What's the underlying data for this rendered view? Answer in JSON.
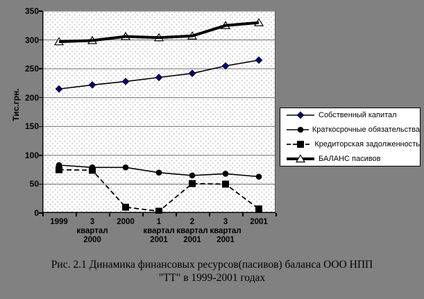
{
  "figure": {
    "background": "#818181",
    "caption": {
      "line1": "Рис. 2.1 Динамика финансовых ресурсов(пасивов) баланса ООО НПП",
      "line2": "\"ТТ\" в 1999-2001 годах"
    }
  },
  "chart_data": {
    "type": "line",
    "title": "",
    "xlabel": "",
    "ylabel": "Тис.грн.",
    "ylim": [
      0,
      350
    ],
    "yticks": [
      0,
      50,
      100,
      150,
      200,
      250,
      300,
      350
    ],
    "grid": "horizontal",
    "legend_position": "right",
    "plot_background": "dotted-white",
    "categories": [
      "1999",
      "3 квартал 2000",
      "2000",
      "1 квартал 2001",
      "2 квартал 2001",
      "3 квартал 2001",
      "2001"
    ],
    "category_label_lines": [
      [
        "1999"
      ],
      [
        "3",
        "квартал",
        "2000"
      ],
      [
        "2000"
      ],
      [
        "1",
        "квартал",
        "2001"
      ],
      [
        "2",
        "квартал",
        "2001"
      ],
      [
        "3",
        "квартал",
        "2001"
      ],
      [
        "2001"
      ]
    ],
    "series": [
      {
        "name": "Собственный капитал",
        "values": [
          215,
          222,
          228,
          235,
          242,
          255,
          265
        ],
        "line": "solid-thin",
        "marker": "diamond",
        "line_color": "#000000",
        "marker_color": "#000080"
      },
      {
        "name": "Краткосрочные обязательства",
        "values": [
          83,
          79,
          79,
          70,
          65,
          68,
          63
        ],
        "line": "solid-thin",
        "marker": "circle",
        "line_color": "#000000",
        "marker_color": "#000000"
      },
      {
        "name": "Кредиторская задолженность",
        "values": [
          75,
          74,
          10,
          3,
          51,
          50,
          7
        ],
        "line": "dashed",
        "marker": "square",
        "line_color": "#000000",
        "marker_color": "#000000"
      },
      {
        "name": "БАЛАНС пасивов",
        "values": [
          297,
          299,
          306,
          304,
          307,
          325,
          330
        ],
        "line": "solid-thick",
        "marker": "triangle-open",
        "line_color": "#000000",
        "marker_color": "#ffffff"
      }
    ]
  }
}
